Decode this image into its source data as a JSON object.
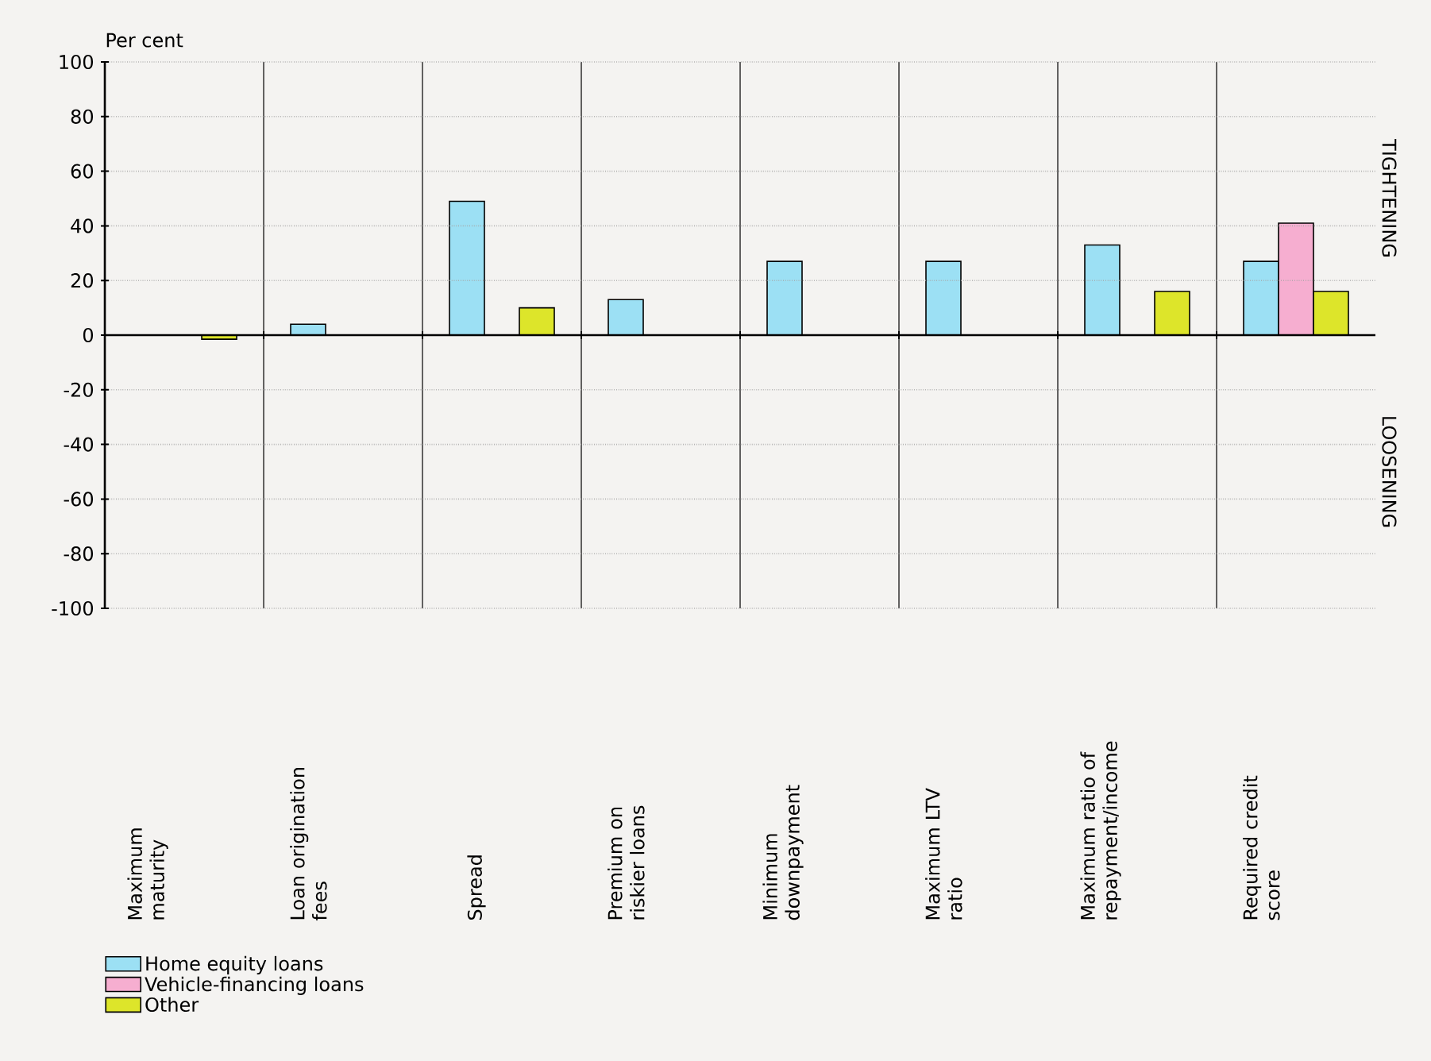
{
  "chart_data": {
    "type": "bar",
    "ylabel": "Per cent",
    "categories": [
      "Maximum maturity",
      "Loan origination fees",
      "Spread",
      "Premium on riskier loans",
      "Minimum downpayment",
      "Maximum LTV ratio",
      "Maximum ratio of repayment/income",
      "Required credit score"
    ],
    "series": [
      {
        "name": "Home equity loans",
        "color": "#9ce0f4",
        "values": [
          null,
          4,
          49,
          13,
          27,
          27,
          33,
          27
        ]
      },
      {
        "name": "Vehicle-financing loans",
        "color": "#f6aed0",
        "values": [
          null,
          null,
          null,
          null,
          null,
          null,
          null,
          41
        ]
      },
      {
        "name": "Other",
        "color": "#dde52a",
        "values": [
          -1.5,
          null,
          10,
          null,
          null,
          null,
          16,
          16
        ]
      }
    ],
    "ylim": [
      -100,
      100
    ],
    "yticks": [
      -100,
      -80,
      -60,
      -40,
      -20,
      0,
      20,
      40,
      60,
      80,
      100
    ],
    "grid": true,
    "legend": "bottom left",
    "annotations": [
      "TIGHTENING",
      "LOOSENING"
    ]
  }
}
